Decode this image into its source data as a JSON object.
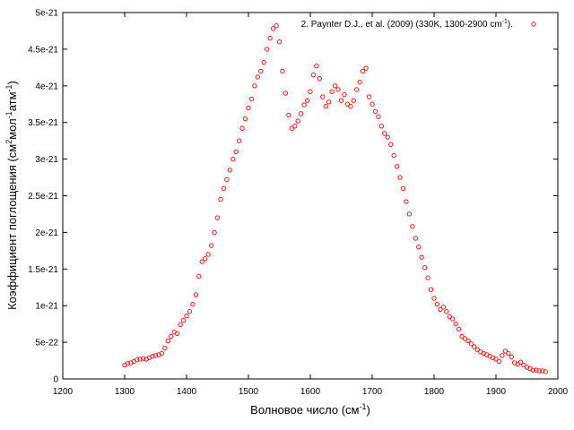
{
  "chart_data": {
    "type": "scatter",
    "xlabel_main": "Волновое число (см",
    "xlabel_sup": "-1",
    "xlabel_end": ")",
    "ylabel_main": "Коэффициент поглощения (см",
    "ylabel_sup1": "2",
    "ylabel_mid": "мол",
    "ylabel_sup2": "-1",
    "ylabel_mid2": "атм",
    "ylabel_sup3": "-1",
    "ylabel_end": ")",
    "xlim": [
      1200,
      2000
    ],
    "ylim": [
      0,
      5e-21
    ],
    "x_ticks": [
      "1200",
      "1300",
      "1400",
      "1500",
      "1600",
      "1700",
      "1800",
      "1900",
      "2000"
    ],
    "y_ticks": [
      "0",
      "5e-22",
      "1e-21",
      "1.5e-21",
      "2e-21",
      "2.5e-21",
      "3e-21",
      "3.5e-21",
      "4e-21",
      "4.5e-21",
      "5e-21"
    ],
    "grid": false,
    "legend_position": "top-right",
    "series": [
      {
        "name_main": "2. Paynter D.J., et al. (2009) (330K, 1300-2900 cm",
        "name_sup": "-1",
        "name_end": ").",
        "color": "#e41a1c",
        "marker": "open-circle",
        "points": [
          [
            1300,
            0.19
          ],
          [
            1305,
            0.21
          ],
          [
            1310,
            0.22
          ],
          [
            1315,
            0.24
          ],
          [
            1320,
            0.26
          ],
          [
            1325,
            0.27
          ],
          [
            1330,
            0.28
          ],
          [
            1335,
            0.27
          ],
          [
            1340,
            0.29
          ],
          [
            1345,
            0.31
          ],
          [
            1350,
            0.32
          ],
          [
            1355,
            0.33
          ],
          [
            1360,
            0.35
          ],
          [
            1365,
            0.42
          ],
          [
            1370,
            0.52
          ],
          [
            1375,
            0.58
          ],
          [
            1380,
            0.64
          ],
          [
            1385,
            0.62
          ],
          [
            1390,
            0.74
          ],
          [
            1395,
            0.8
          ],
          [
            1400,
            0.86
          ],
          [
            1405,
            0.92
          ],
          [
            1410,
            1.02
          ],
          [
            1415,
            1.15
          ],
          [
            1420,
            1.4
          ],
          [
            1425,
            1.6
          ],
          [
            1430,
            1.64
          ],
          [
            1435,
            1.7
          ],
          [
            1440,
            1.82
          ],
          [
            1445,
            2.0
          ],
          [
            1450,
            2.2
          ],
          [
            1455,
            2.45
          ],
          [
            1460,
            2.6
          ],
          [
            1465,
            2.72
          ],
          [
            1470,
            2.85
          ],
          [
            1475,
            3.0
          ],
          [
            1480,
            3.1
          ],
          [
            1485,
            3.25
          ],
          [
            1490,
            3.42
          ],
          [
            1495,
            3.55
          ],
          [
            1500,
            3.7
          ],
          [
            1505,
            3.82
          ],
          [
            1510,
            4.0
          ],
          [
            1515,
            4.12
          ],
          [
            1520,
            4.2
          ],
          [
            1525,
            4.32
          ],
          [
            1530,
            4.5
          ],
          [
            1535,
            4.65
          ],
          [
            1540,
            4.78
          ],
          [
            1545,
            4.82
          ],
          [
            1550,
            4.6
          ],
          [
            1555,
            4.2
          ],
          [
            1560,
            3.9
          ],
          [
            1565,
            3.6
          ],
          [
            1570,
            3.42
          ],
          [
            1575,
            3.45
          ],
          [
            1580,
            3.52
          ],
          [
            1585,
            3.62
          ],
          [
            1590,
            3.74
          ],
          [
            1595,
            3.8
          ],
          [
            1600,
            3.92
          ],
          [
            1605,
            4.15
          ],
          [
            1610,
            4.27
          ],
          [
            1615,
            4.1
          ],
          [
            1620,
            3.85
          ],
          [
            1625,
            3.72
          ],
          [
            1630,
            3.78
          ],
          [
            1635,
            3.92
          ],
          [
            1640,
            4.0
          ],
          [
            1645,
            3.95
          ],
          [
            1650,
            3.8
          ],
          [
            1655,
            3.88
          ],
          [
            1660,
            3.75
          ],
          [
            1665,
            3.72
          ],
          [
            1670,
            3.8
          ],
          [
            1675,
            3.95
          ],
          [
            1680,
            4.05
          ],
          [
            1685,
            4.2
          ],
          [
            1690,
            4.24
          ],
          [
            1695,
            3.85
          ],
          [
            1700,
            3.75
          ],
          [
            1705,
            3.65
          ],
          [
            1710,
            3.58
          ],
          [
            1715,
            3.45
          ],
          [
            1720,
            3.35
          ],
          [
            1725,
            3.3
          ],
          [
            1730,
            3.2
          ],
          [
            1735,
            3.05
          ],
          [
            1740,
            2.9
          ],
          [
            1745,
            2.75
          ],
          [
            1750,
            2.6
          ],
          [
            1755,
            2.42
          ],
          [
            1760,
            2.25
          ],
          [
            1765,
            2.08
          ],
          [
            1770,
            1.92
          ],
          [
            1775,
            1.8
          ],
          [
            1780,
            1.66
          ],
          [
            1785,
            1.52
          ],
          [
            1790,
            1.38
          ],
          [
            1795,
            1.22
          ],
          [
            1800,
            1.1
          ],
          [
            1805,
            1.02
          ],
          [
            1810,
            0.95
          ],
          [
            1815,
            0.98
          ],
          [
            1820,
            0.92
          ],
          [
            1825,
            0.85
          ],
          [
            1830,
            0.82
          ],
          [
            1835,
            0.75
          ],
          [
            1840,
            0.68
          ],
          [
            1845,
            0.58
          ],
          [
            1850,
            0.55
          ],
          [
            1855,
            0.52
          ],
          [
            1860,
            0.48
          ],
          [
            1865,
            0.44
          ],
          [
            1870,
            0.4
          ],
          [
            1875,
            0.37
          ],
          [
            1880,
            0.35
          ],
          [
            1885,
            0.33
          ],
          [
            1890,
            0.31
          ],
          [
            1895,
            0.29
          ],
          [
            1900,
            0.27
          ],
          [
            1905,
            0.24
          ],
          [
            1910,
            0.32
          ],
          [
            1915,
            0.38
          ],
          [
            1920,
            0.35
          ],
          [
            1925,
            0.3
          ],
          [
            1930,
            0.22
          ],
          [
            1935,
            0.2
          ],
          [
            1940,
            0.23
          ],
          [
            1945,
            0.19
          ],
          [
            1950,
            0.16
          ],
          [
            1955,
            0.14
          ],
          [
            1960,
            0.12
          ],
          [
            1965,
            0.12
          ],
          [
            1970,
            0.11
          ],
          [
            1975,
            0.11
          ],
          [
            1980,
            0.1
          ]
        ]
      }
    ],
    "y_scale_note_hidden": "values in units of 1e-21"
  }
}
